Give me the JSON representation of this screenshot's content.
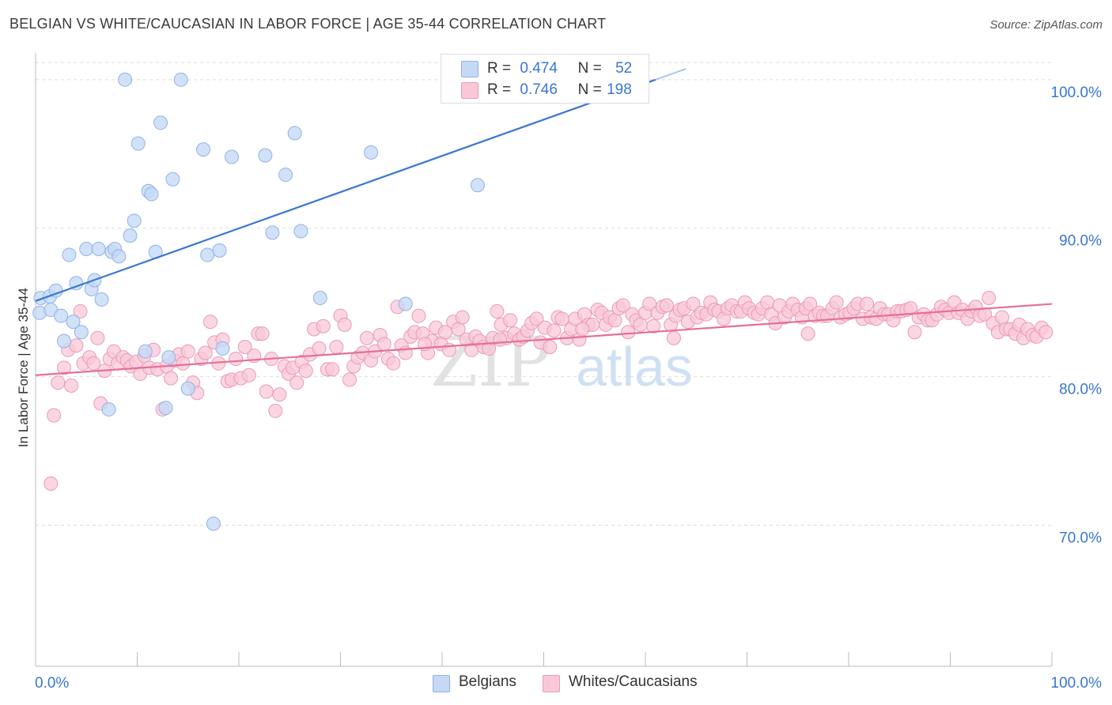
{
  "title": "BELGIAN VS WHITE/CAUCASIAN IN LABOR FORCE | AGE 35-44 CORRELATION CHART",
  "source": "Source: ZipAtlas.com",
  "colors": {
    "belgians_fill": "#c5d9f5",
    "belgians_stroke": "#8fb3e8",
    "belgians_line": "#3a76d0",
    "whites_fill": "#f8c8d8",
    "whites_stroke": "#eb9ab5",
    "whites_line": "#e56f98",
    "axis_label": "#3a76d0",
    "grid": "#dddddd"
  },
  "legend": {
    "r_label": "R =",
    "n_label": "N =",
    "belgians_r": "0.474",
    "belgians_n": "52",
    "whites_r": "0.746",
    "whites_n": "198"
  },
  "watermark": {
    "zip": "ZIP",
    "atlas": "atlas"
  },
  "chart_data": {
    "type": "scatter",
    "title": "BELGIAN VS WHITE/CAUCASIAN IN LABOR FORCE | AGE 35-44 CORRELATION CHART",
    "ylabel": "In Labor Force | Age 35-44",
    "xlabel": "",
    "xlim": [
      0,
      100
    ],
    "ylim": [
      60.5,
      101.8
    ],
    "x_tick_labels": [
      "0.0%",
      "100.0%"
    ],
    "y_ticks": [
      70,
      80,
      90,
      100
    ],
    "y_tick_labels": [
      "70.0%",
      "80.0%",
      "90.0%",
      "100.0%"
    ],
    "grid": true,
    "legend_position": "top-center",
    "series": [
      {
        "name": "Belgians",
        "r": 0.474,
        "n": 52,
        "trend": [
          [
            0,
            85.1
          ],
          [
            61,
            100.0
          ]
        ],
        "points": [
          [
            0.4,
            84.3
          ],
          [
            0.5,
            85.3
          ],
          [
            1.4,
            85.4
          ],
          [
            1.5,
            84.5
          ],
          [
            2,
            85.8
          ],
          [
            2.5,
            84.1
          ],
          [
            2.8,
            82.4
          ],
          [
            3.3,
            88.2
          ],
          [
            3.7,
            83.7
          ],
          [
            4,
            86.3
          ],
          [
            4.5,
            83
          ],
          [
            5,
            88.6
          ],
          [
            5.5,
            85.9
          ],
          [
            5.8,
            86.5
          ],
          [
            6.2,
            88.6
          ],
          [
            6.5,
            85.2
          ],
          [
            7.2,
            77.8
          ],
          [
            7.5,
            88.4
          ],
          [
            7.8,
            88.6
          ],
          [
            8.2,
            88.1
          ],
          [
            8.8,
            100
          ],
          [
            9.3,
            89.5
          ],
          [
            9.7,
            90.5
          ],
          [
            10.1,
            95.7
          ],
          [
            10.8,
            81.7
          ],
          [
            11.1,
            92.5
          ],
          [
            11.4,
            92.3
          ],
          [
            11.8,
            88.4
          ],
          [
            12.3,
            97.1
          ],
          [
            12.8,
            77.9
          ],
          [
            13.1,
            81.3
          ],
          [
            13.5,
            93.3
          ],
          [
            14.3,
            100
          ],
          [
            15,
            79.2
          ],
          [
            16.5,
            95.3
          ],
          [
            16.9,
            88.2
          ],
          [
            17.5,
            70.1
          ],
          [
            18.1,
            88.5
          ],
          [
            18.4,
            81.9
          ],
          [
            19.3,
            94.8
          ],
          [
            22.6,
            94.9
          ],
          [
            23.3,
            89.7
          ],
          [
            24.6,
            93.6
          ],
          [
            25.5,
            96.4
          ],
          [
            26.1,
            89.8
          ],
          [
            28,
            85.3
          ],
          [
            33,
            95.1
          ],
          [
            36.4,
            84.9
          ],
          [
            43.5,
            92.9
          ],
          [
            51.9,
            100
          ]
        ]
      },
      {
        "name": "Whites/Caucasians",
        "r": 0.746,
        "n": 198,
        "trend": [
          [
            0,
            80.1
          ],
          [
            100,
            84.9
          ]
        ],
        "points": [
          [
            1.5,
            72.8
          ],
          [
            1.8,
            77.4
          ],
          [
            2.2,
            79.6
          ],
          [
            2.8,
            80.6
          ],
          [
            3.2,
            81.8
          ],
          [
            3.5,
            79.4
          ],
          [
            4,
            82.1
          ],
          [
            4.4,
            84.4
          ],
          [
            4.7,
            80.9
          ],
          [
            5.3,
            81.3
          ],
          [
            5.7,
            80.9
          ],
          [
            6.1,
            82.6
          ],
          [
            6.4,
            78.2
          ],
          [
            6.8,
            80.4
          ],
          [
            7.3,
            81.2
          ],
          [
            7.7,
            81.7
          ],
          [
            8.1,
            80.9
          ],
          [
            8.6,
            81.3
          ],
          [
            9.0,
            81.1
          ],
          [
            9.4,
            80.7
          ],
          [
            9.9,
            81.0
          ],
          [
            10.3,
            80.2
          ],
          [
            10.7,
            81.4
          ],
          [
            11.2,
            80.6
          ],
          [
            11.6,
            81.8
          ],
          [
            12.0,
            80.5
          ],
          [
            12.5,
            77.8
          ],
          [
            12.9,
            80.7
          ],
          [
            13.3,
            79.9
          ],
          [
            13.7,
            81.1
          ],
          [
            14.1,
            81.5
          ],
          [
            14.5,
            80.9
          ],
          [
            15.0,
            81.7
          ],
          [
            15.5,
            79.6
          ],
          [
            15.9,
            78.9
          ],
          [
            16.3,
            81.2
          ],
          [
            16.7,
            81.6
          ],
          [
            17.2,
            83.7
          ],
          [
            17.6,
            82.3
          ],
          [
            18.0,
            80.9
          ],
          [
            18.4,
            82.5
          ],
          [
            18.9,
            79.7
          ],
          [
            19.3,
            79.8
          ],
          [
            19.7,
            81.2
          ],
          [
            20.2,
            79.9
          ],
          [
            20.6,
            82.0
          ],
          [
            21.0,
            80.1
          ],
          [
            21.5,
            81.4
          ],
          [
            21.9,
            82.9
          ],
          [
            22.3,
            82.9
          ],
          [
            22.7,
            79.0
          ],
          [
            23.2,
            81.2
          ],
          [
            23.6,
            77.7
          ],
          [
            24.0,
            78.8
          ],
          [
            24.5,
            80.7
          ],
          [
            24.9,
            80.2
          ],
          [
            25.3,
            80.6
          ],
          [
            25.7,
            79.6
          ],
          [
            26.2,
            81.0
          ],
          [
            26.6,
            80.4
          ],
          [
            27.0,
            81.5
          ],
          [
            27.4,
            83.2
          ],
          [
            27.9,
            81.9
          ],
          [
            28.3,
            83.4
          ],
          [
            28.7,
            80.5
          ],
          [
            29.2,
            80.5
          ],
          [
            29.6,
            82.0
          ],
          [
            30.0,
            84.1
          ],
          [
            30.4,
            83.5
          ],
          [
            30.9,
            79.8
          ],
          [
            31.3,
            80.7
          ],
          [
            31.7,
            81.3
          ],
          [
            32.2,
            81.6
          ],
          [
            32.6,
            82.6
          ],
          [
            33.0,
            81.1
          ],
          [
            33.4,
            81.7
          ],
          [
            33.9,
            82.8
          ],
          [
            34.3,
            82.2
          ],
          [
            34.7,
            81.2
          ],
          [
            35.2,
            80.9
          ],
          [
            35.6,
            84.7
          ],
          [
            36.0,
            82.1
          ],
          [
            36.4,
            81.6
          ],
          [
            36.9,
            82.7
          ],
          [
            37.3,
            83.0
          ],
          [
            37.7,
            84.1
          ],
          [
            38.1,
            82.9
          ],
          [
            38.6,
            81.6
          ],
          [
            39.0,
            82.4
          ],
          [
            39.4,
            83.3
          ],
          [
            39.9,
            82.2
          ],
          [
            40.3,
            83.0
          ],
          [
            40.7,
            81.8
          ],
          [
            41.1,
            83.7
          ],
          [
            41.6,
            83.2
          ],
          [
            42.0,
            84.0
          ],
          [
            42.4,
            82.5
          ],
          [
            42.9,
            81.8
          ],
          [
            43.3,
            82.7
          ],
          [
            43.7,
            82.4
          ],
          [
            44.1,
            82.0
          ],
          [
            44.6,
            81.9
          ],
          [
            45.0,
            82.6
          ],
          [
            45.4,
            84.4
          ],
          [
            45.8,
            83.5
          ],
          [
            46.3,
            82.6
          ],
          [
            46.7,
            83.8
          ],
          [
            47.1,
            82.9
          ],
          [
            47.6,
            82.5
          ],
          [
            48.0,
            82.7
          ],
          [
            48.4,
            83.1
          ],
          [
            48.8,
            83.6
          ],
          [
            49.3,
            83.9
          ],
          [
            49.7,
            82.3
          ],
          [
            50.1,
            83.3
          ],
          [
            50.6,
            82.0
          ],
          [
            51.0,
            83.1
          ],
          [
            51.4,
            84.0
          ],
          [
            51.8,
            83.9
          ],
          [
            52.3,
            82.6
          ],
          [
            52.7,
            83.2
          ],
          [
            53.1,
            83.9
          ],
          [
            53.5,
            82.5
          ],
          [
            54.0,
            84.2
          ],
          [
            54.4,
            83.5
          ],
          [
            54.8,
            83.5
          ],
          [
            55.3,
            84.5
          ],
          [
            55.7,
            84.3
          ],
          [
            56.1,
            83.5
          ],
          [
            56.5,
            84.0
          ],
          [
            57.0,
            83.8
          ],
          [
            57.4,
            84.6
          ],
          [
            57.8,
            84.8
          ],
          [
            58.3,
            83.0
          ],
          [
            58.7,
            84.2
          ],
          [
            59.1,
            83.8
          ],
          [
            59.5,
            83.5
          ],
          [
            60.0,
            84.3
          ],
          [
            60.4,
            84.9
          ],
          [
            60.8,
            83.4
          ],
          [
            61.2,
            84.3
          ],
          [
            61.7,
            84.7
          ],
          [
            62.1,
            84.8
          ],
          [
            62.5,
            83.5
          ],
          [
            63.0,
            84.1
          ],
          [
            63.4,
            84.5
          ],
          [
            63.8,
            84.6
          ],
          [
            64.2,
            83.7
          ],
          [
            64.7,
            84.9
          ],
          [
            65.1,
            84.0
          ],
          [
            65.5,
            84.3
          ],
          [
            66.0,
            84.2
          ],
          [
            66.4,
            85.0
          ],
          [
            66.8,
            84.5
          ],
          [
            67.2,
            84.4
          ],
          [
            67.7,
            83.9
          ],
          [
            68.1,
            84.6
          ],
          [
            68.5,
            84.8
          ],
          [
            69.0,
            84.4
          ],
          [
            69.4,
            84.4
          ],
          [
            69.8,
            85.0
          ],
          [
            70.2,
            84.6
          ],
          [
            70.7,
            84.3
          ],
          [
            71.1,
            84.2
          ],
          [
            71.5,
            84.6
          ],
          [
            72.0,
            85.0
          ],
          [
            72.4,
            84.2
          ],
          [
            72.8,
            83.6
          ],
          [
            73.2,
            84.8
          ],
          [
            73.7,
            84.0
          ],
          [
            74.1,
            84.4
          ],
          [
            74.5,
            84.9
          ],
          [
            75.0,
            84.5
          ],
          [
            75.4,
            84.0
          ],
          [
            75.8,
            84.6
          ],
          [
            76.2,
            84.9
          ],
          [
            76.7,
            84.1
          ],
          [
            77.1,
            84.3
          ],
          [
            77.5,
            84.1
          ],
          [
            77.9,
            84.1
          ],
          [
            78.4,
            84.6
          ],
          [
            78.8,
            85.0
          ],
          [
            79.2,
            84.0
          ],
          [
            79.7,
            84.2
          ],
          [
            80.1,
            84.3
          ],
          [
            80.5,
            84.6
          ],
          [
            80.9,
            84.9
          ],
          [
            81.4,
            83.9
          ],
          [
            81.8,
            84.9
          ],
          [
            82.2,
            84.0
          ],
          [
            82.7,
            83.9
          ],
          [
            83.1,
            84.6
          ],
          [
            83.5,
            84.2
          ],
          [
            83.9,
            84.2
          ],
          [
            84.4,
            83.8
          ],
          [
            84.8,
            84.4
          ],
          [
            85.2,
            84.4
          ],
          [
            85.7,
            84.5
          ],
          [
            86.1,
            84.6
          ],
          [
            86.5,
            83.0
          ],
          [
            86.9,
            84.0
          ],
          [
            87.4,
            84.2
          ],
          [
            87.8,
            83.8
          ],
          [
            88.2,
            83.8
          ],
          [
            88.7,
            84.2
          ],
          [
            89.1,
            84.7
          ],
          [
            89.5,
            84.5
          ],
          [
            89.9,
            84.3
          ],
          [
            90.4,
            85.0
          ],
          [
            90.8,
            84.3
          ],
          [
            91.2,
            84.5
          ],
          [
            91.7,
            83.9
          ],
          [
            92.1,
            84.4
          ],
          [
            92.5,
            84.7
          ],
          [
            92.9,
            84.1
          ],
          [
            93.4,
            84.2
          ],
          [
            93.8,
            85.3
          ],
          [
            94.2,
            83.6
          ],
          [
            94.7,
            83.0
          ],
          [
            95.1,
            84.0
          ],
          [
            95.5,
            83.2
          ],
          [
            95.9,
            83.2
          ],
          [
            96.4,
            82.9
          ],
          [
            96.8,
            83.5
          ],
          [
            97.2,
            82.6
          ],
          [
            97.6,
            83.2
          ],
          [
            98.1,
            82.8
          ],
          [
            98.5,
            82.7
          ],
          [
            99.0,
            83.3
          ],
          [
            99.4,
            83.0
          ],
          [
            76.0,
            82.9
          ],
          [
            62.8,
            82.6
          ],
          [
            53.8,
            83.2
          ],
          [
            45.7,
            82.5
          ],
          [
            38.3,
            82.2
          ]
        ]
      }
    ]
  },
  "bottom_legend": {
    "belgians": "Belgians",
    "whites": "Whites/Caucasians"
  }
}
